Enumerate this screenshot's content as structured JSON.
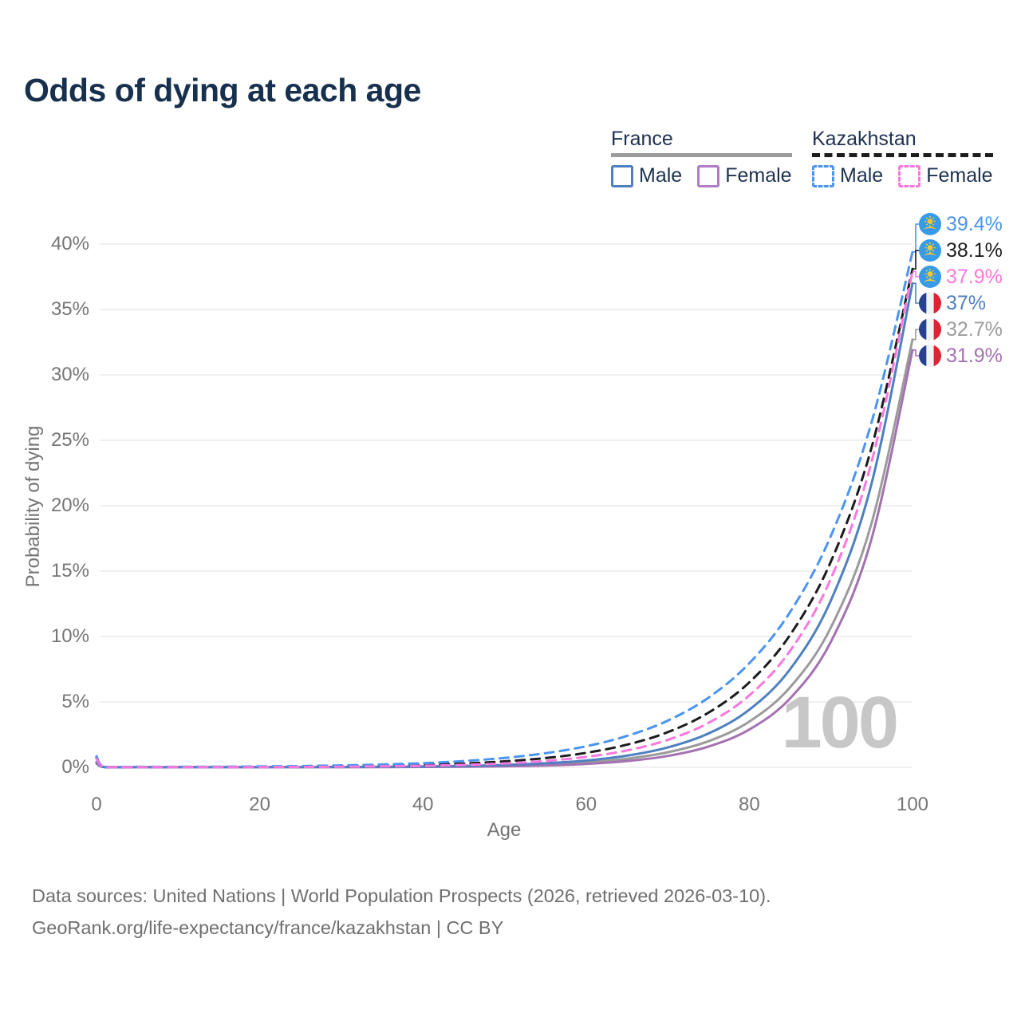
{
  "title": "Odds of dying at each age",
  "watermark_age": "100",
  "legend": {
    "groups": [
      {
        "label": "France",
        "line_style": "solid",
        "swatch_color": "#9b9b9b",
        "items": [
          {
            "label": "Male",
            "color": "#4e80c0"
          },
          {
            "label": "Female",
            "color": "#b07cc6"
          }
        ]
      },
      {
        "label": "Kazakhstan",
        "line_style": "dashed",
        "swatch_color": "#1c1c1c",
        "items": [
          {
            "label": "Male",
            "color": "#4a94f2"
          },
          {
            "label": "Female",
            "color": "#fc77dd"
          }
        ]
      }
    ]
  },
  "axes": {
    "y": {
      "label": "Probability of dying",
      "ticks": [
        "0%",
        "5%",
        "10%",
        "15%",
        "20%",
        "25%",
        "30%",
        "35%",
        "40%"
      ],
      "tick_values": [
        0,
        5,
        10,
        15,
        20,
        25,
        30,
        35,
        40
      ]
    },
    "x": {
      "label": "Age",
      "ticks": [
        "0",
        "20",
        "40",
        "60",
        "80",
        "100"
      ],
      "tick_values": [
        0,
        20,
        40,
        60,
        80,
        100
      ]
    }
  },
  "footer": {
    "line1": "Data sources: United Nations | World Population Prospects (2026, retrieved 2026-03-10).",
    "line2": "GeoRank.org/life-expectancy/france/kazakhstan | CC BY"
  },
  "colors": {
    "title_text": "#17304e",
    "legend_text": "#1d3150",
    "axis_text": "#757575",
    "gridline": "#ececec",
    "watermark": "#c7c7c7",
    "footer_text": "#6f6f6f",
    "kazakhstan_flag_blue": "#379be8",
    "kazakhstan_flag_gold": "#f6c928",
    "france_flag_blue": "#27418f",
    "france_flag_white": "#f2f2f2",
    "france_flag_red": "#da2333"
  },
  "chart_data": {
    "type": "line",
    "title": "Odds of dying at each age",
    "xlabel": "Age",
    "ylabel": "Probability of dying",
    "xlim": [
      0,
      100
    ],
    "ylim": [
      0,
      40
    ],
    "y_unit": "%",
    "grid": "horizontal",
    "legend_position": "top-right",
    "x": [
      0,
      1,
      5,
      10,
      15,
      20,
      25,
      30,
      35,
      40,
      45,
      50,
      55,
      60,
      65,
      70,
      75,
      80,
      85,
      90,
      95,
      100
    ],
    "series": [
      {
        "name": "France Both sexes",
        "country": "France",
        "style": "solid",
        "color": "#9b9b9b",
        "end_label": "32.7%",
        "end_value": 32.7,
        "values": [
          0.35,
          0.02,
          0.01,
          0.01,
          0.01,
          0.01,
          0.02,
          0.02,
          0.03,
          0.04,
          0.07,
          0.12,
          0.21,
          0.37,
          0.66,
          1.15,
          2.0,
          3.5,
          6.12,
          10.7,
          18.7,
          32.7
        ]
      },
      {
        "name": "France Female",
        "country": "France",
        "style": "solid",
        "color": "#a471b1",
        "end_label": "31.9%",
        "end_value": 31.9,
        "values": [
          0.3,
          0.01,
          0.01,
          0.01,
          0.01,
          0.01,
          0.01,
          0.01,
          0.02,
          0.03,
          0.05,
          0.08,
          0.14,
          0.26,
          0.48,
          0.87,
          1.59,
          2.89,
          5.27,
          9.61,
          17.51,
          31.9
        ]
      },
      {
        "name": "France Male",
        "country": "France",
        "style": "solid",
        "color": "#4e80c0",
        "end_label": "37%",
        "end_value": 37.0,
        "values": [
          0.4,
          0.02,
          0.01,
          0.01,
          0.01,
          0.02,
          0.02,
          0.03,
          0.04,
          0.07,
          0.11,
          0.18,
          0.31,
          0.52,
          0.89,
          1.52,
          2.59,
          4.41,
          7.5,
          12.77,
          21.73,
          37.0
        ]
      },
      {
        "name": "Kazakhstan Both sexes",
        "country": "Kazakhstan",
        "style": "dashed",
        "color": "#1c1c1c",
        "end_label": "38.1%",
        "end_value": 38.1,
        "values": [
          0.75,
          0.04,
          0.03,
          0.03,
          0.03,
          0.03,
          0.05,
          0.08,
          0.12,
          0.19,
          0.29,
          0.46,
          0.71,
          1.11,
          1.73,
          2.69,
          4.18,
          6.5,
          10.12,
          15.74,
          24.48,
          38.1
        ]
      },
      {
        "name": "Kazakhstan Male",
        "country": "Kazakhstan",
        "style": "dashed",
        "color": "#4a94f2",
        "end_label": "39.4%",
        "end_value": 39.4,
        "values": [
          0.85,
          0.05,
          0.04,
          0.04,
          0.05,
          0.07,
          0.1,
          0.15,
          0.22,
          0.32,
          0.48,
          0.72,
          1.08,
          1.61,
          2.4,
          3.57,
          5.33,
          7.96,
          11.87,
          17.7,
          26.41,
          39.4
        ]
      },
      {
        "name": "Kazakhstan Female",
        "country": "Kazakhstan",
        "style": "dashed",
        "color": "#fc77dd",
        "end_label": "37.9%",
        "end_value": 37.9,
        "values": [
          0.65,
          0.03,
          0.02,
          0.02,
          0.02,
          0.02,
          0.03,
          0.05,
          0.08,
          0.12,
          0.19,
          0.3,
          0.49,
          0.8,
          1.29,
          2.1,
          3.4,
          5.5,
          8.91,
          14.44,
          23.39,
          37.9
        ]
      }
    ]
  }
}
